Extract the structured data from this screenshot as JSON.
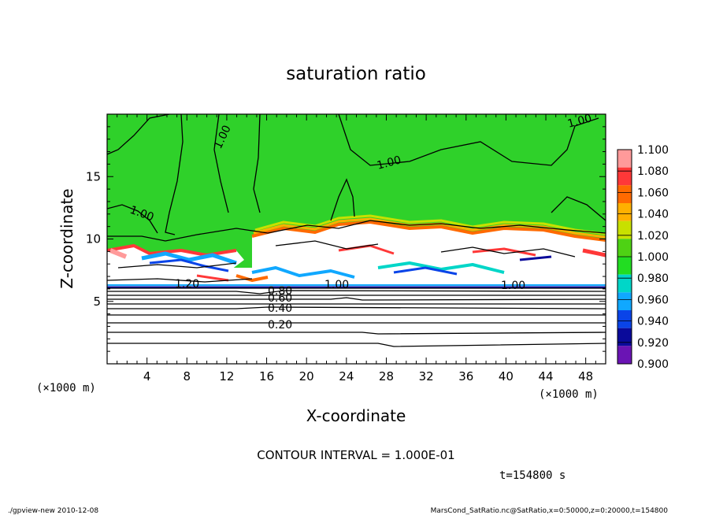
{
  "chart_data": {
    "type": "heatmap",
    "title": "saturation ratio",
    "xlabel": "X-coordinate",
    "ylabel": "Z-coordinate",
    "x_unit": "(×1000 m)",
    "y_unit": "(×1000 m)",
    "xlim": [
      0,
      50
    ],
    "ylim": [
      0,
      20
    ],
    "x_ticks": [
      "4",
      "8",
      "12",
      "16",
      "20",
      "24",
      "28",
      "32",
      "36",
      "40",
      "44",
      "48"
    ],
    "y_ticks": [
      "5",
      "10",
      "15"
    ],
    "colorbar": {
      "levels": [
        "1.100",
        "1.080",
        "1.060",
        "1.040",
        "1.020",
        "1.000",
        "0.980",
        "0.960",
        "0.940",
        "0.920",
        "0.900"
      ],
      "colors": [
        "#ff9a9a",
        "#ff3838",
        "#ff6a00",
        "#ffb000",
        "#c8e000",
        "#4ed214",
        "#22dd22",
        "#00d6c8",
        "#10a8ff",
        "#0a44e8",
        "#0a0a9a",
        "#6a14b4"
      ]
    },
    "contour_labels": [
      "1.00",
      "1.00",
      "1.00",
      "1.00",
      "1.20",
      "1.00",
      "1.00",
      "0.80",
      "0.60",
      "0.40",
      "0.20"
    ],
    "contour_interval": "CONTOUR INTERVAL = 1.000E-01",
    "time": "t=154800 s"
  },
  "footer": {
    "left": "./gpview-new  2010-12-08",
    "right": "MarsCond_SatRatio.nc@SatRatio,x=0:50000,z=0:20000,t=154800"
  }
}
